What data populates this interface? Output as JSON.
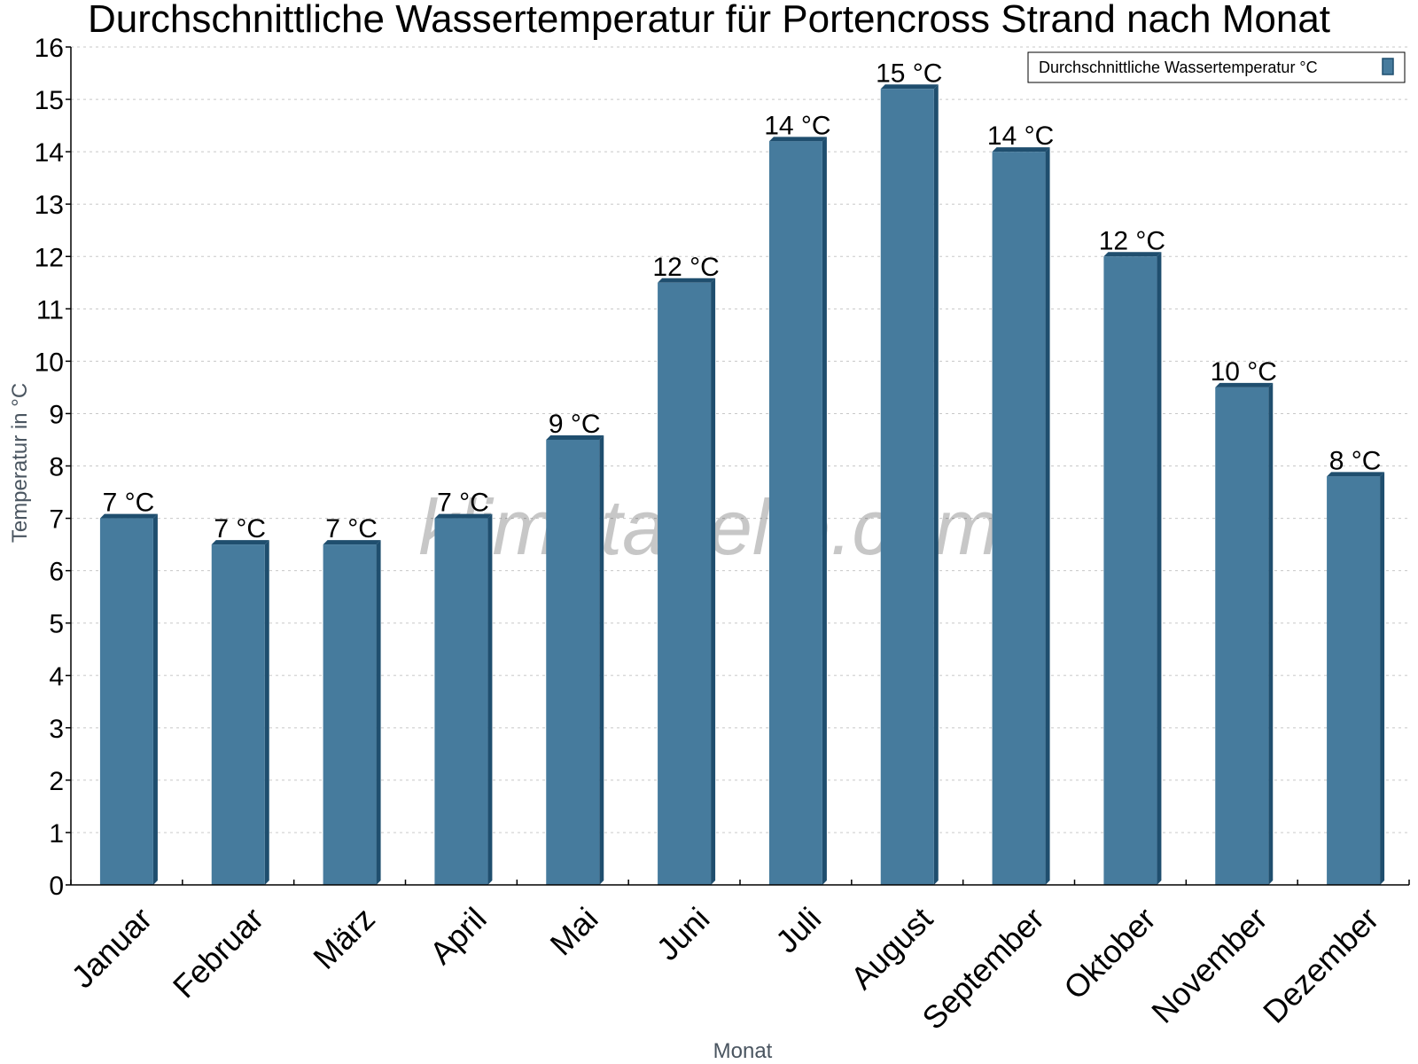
{
  "chart_data": {
    "type": "bar",
    "title": "Durchschnittliche Wassertemperatur für Portencross Strand nach Monat",
    "xlabel": "Monat",
    "ylabel": "Temperatur in °C",
    "ylim": [
      0,
      16
    ],
    "yticks": [
      0,
      1,
      2,
      3,
      4,
      5,
      6,
      7,
      8,
      9,
      10,
      11,
      12,
      13,
      14,
      15,
      16
    ],
    "grid": true,
    "legend_position": "top-right",
    "categories": [
      "Januar",
      "Februar",
      "März",
      "April",
      "Mai",
      "Juni",
      "Juli",
      "August",
      "September",
      "Oktober",
      "November",
      "Dezember"
    ],
    "series": [
      {
        "name": "Durchschnittliche Wassertemperatur °C",
        "color": "#467b9d",
        "edge_color": "#1f4e6e",
        "values": [
          7.0,
          6.5,
          6.5,
          7.0,
          8.5,
          11.5,
          14.2,
          15.2,
          14.0,
          12.0,
          9.5,
          7.8
        ],
        "labels": [
          "7 °C",
          "7 °C",
          "7 °C",
          "7 °C",
          "9 °C",
          "12 °C",
          "14 °C",
          "15 °C",
          "14 °C",
          "12 °C",
          "10 °C",
          "8 °C"
        ]
      }
    ],
    "watermark": "klimatabelle.com"
  }
}
